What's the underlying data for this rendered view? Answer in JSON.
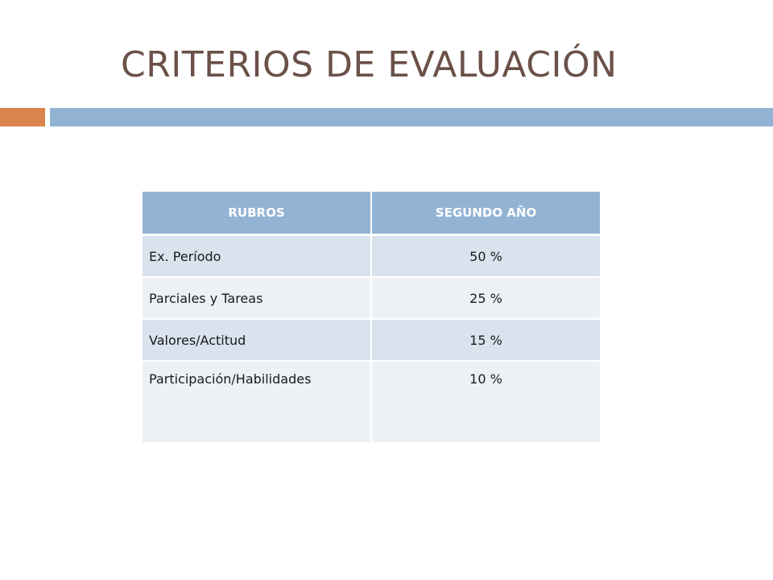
{
  "slide": {
    "title": "CRITERIOS DE EVALUACIÓN"
  },
  "colors": {
    "title": "#6b5148",
    "accent_orange": "#d9844b",
    "accent_blue": "#93b3d4",
    "header_fill": "#93b3d4",
    "row_odd": "#d9e3ee",
    "row_even": "#edf1f6"
  },
  "table": {
    "headers": [
      "RUBROS",
      "SEGUNDO AÑO"
    ],
    "rows": [
      {
        "rubro": "Ex. Período",
        "valor": "50 %"
      },
      {
        "rubro": "Parciales y Tareas",
        "valor": "25 %"
      },
      {
        "rubro": "Valores/Actitud",
        "valor": "15 %"
      },
      {
        "rubro": "Participación/Habilidades",
        "valor": "10 %"
      }
    ]
  }
}
